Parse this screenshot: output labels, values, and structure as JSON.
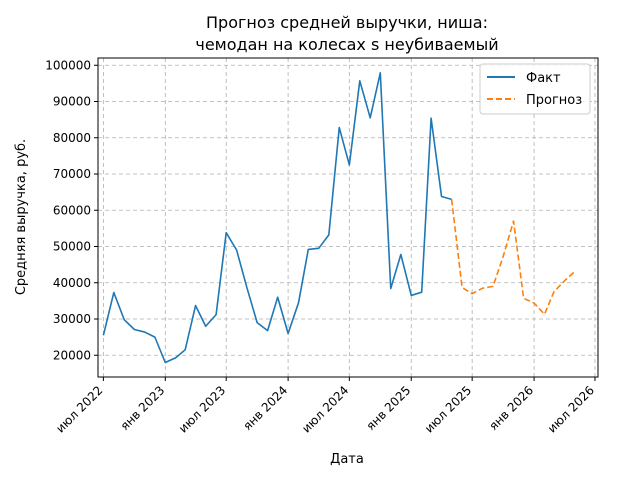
{
  "chart_data": {
    "type": "line",
    "title": [
      "Прогноз средней выручки, ниша:",
      "чемодан на колесах s неубиваемый"
    ],
    "xlabel": "Дата",
    "ylabel": "Средняя выручка, руб.",
    "ylim": [
      14000,
      102000
    ],
    "xlim": [
      "2022-06-15",
      "2026-07-10"
    ],
    "grid": true,
    "legend_position": "top-right",
    "yticks": [
      20000,
      30000,
      40000,
      50000,
      60000,
      70000,
      80000,
      90000,
      100000
    ],
    "xticks": [
      {
        "date": "2022-07-01",
        "label": "июл 2022"
      },
      {
        "date": "2023-01-01",
        "label": "янв 2023"
      },
      {
        "date": "2023-07-01",
        "label": "июл 2023"
      },
      {
        "date": "2024-01-01",
        "label": "янв 2024"
      },
      {
        "date": "2024-07-01",
        "label": "июл 2024"
      },
      {
        "date": "2025-01-01",
        "label": "янв 2025"
      },
      {
        "date": "2025-07-01",
        "label": "июл 2025"
      },
      {
        "date": "2026-01-01",
        "label": "янв 2026"
      },
      {
        "date": "2026-07-01",
        "label": "июл 2026"
      }
    ],
    "series": [
      {
        "name": "Факт",
        "color": "#1f77b4",
        "style": "solid",
        "points": [
          [
            "2022-07-01",
            25500
          ],
          [
            "2022-08-01",
            37300
          ],
          [
            "2022-09-01",
            29800
          ],
          [
            "2022-10-01",
            27100
          ],
          [
            "2022-11-01",
            26400
          ],
          [
            "2022-12-01",
            25000
          ],
          [
            "2023-01-01",
            18000
          ],
          [
            "2023-02-01",
            19300
          ],
          [
            "2023-03-01",
            21500
          ],
          [
            "2023-04-01",
            33700
          ],
          [
            "2023-05-01",
            28000
          ],
          [
            "2023-06-01",
            31200
          ],
          [
            "2023-07-01",
            53800
          ],
          [
            "2023-08-01",
            49000
          ],
          [
            "2023-09-01",
            38500
          ],
          [
            "2023-10-01",
            29000
          ],
          [
            "2023-11-01",
            26800
          ],
          [
            "2023-12-01",
            36000
          ],
          [
            "2024-01-01",
            26000
          ],
          [
            "2024-02-01",
            34500
          ],
          [
            "2024-03-01",
            49200
          ],
          [
            "2024-04-01",
            49500
          ],
          [
            "2024-05-01",
            53200
          ],
          [
            "2024-06-01",
            82800
          ],
          [
            "2024-07-01",
            72500
          ],
          [
            "2024-08-01",
            95700
          ],
          [
            "2024-09-01",
            85500
          ],
          [
            "2024-10-01",
            97900
          ],
          [
            "2024-11-01",
            38400
          ],
          [
            "2024-12-01",
            47800
          ],
          [
            "2025-01-01",
            36500
          ],
          [
            "2025-02-01",
            37400
          ],
          [
            "2025-03-01",
            85400
          ],
          [
            "2025-04-01",
            63800
          ],
          [
            "2025-05-01",
            63000
          ]
        ]
      },
      {
        "name": "Прогноз",
        "color": "#ff7f0e",
        "style": "dashed",
        "points": [
          [
            "2025-05-01",
            63000
          ],
          [
            "2025-06-01",
            38700
          ],
          [
            "2025-07-01",
            37000
          ],
          [
            "2025-08-01",
            38500
          ],
          [
            "2025-09-01",
            39000
          ],
          [
            "2025-10-01",
            47200
          ],
          [
            "2025-11-01",
            57000
          ],
          [
            "2025-12-01",
            35700
          ],
          [
            "2026-01-01",
            34400
          ],
          [
            "2026-02-01",
            31300
          ],
          [
            "2026-03-01",
            37500
          ],
          [
            "2026-04-01",
            40500
          ],
          [
            "2026-05-01",
            43000
          ]
        ]
      }
    ]
  }
}
